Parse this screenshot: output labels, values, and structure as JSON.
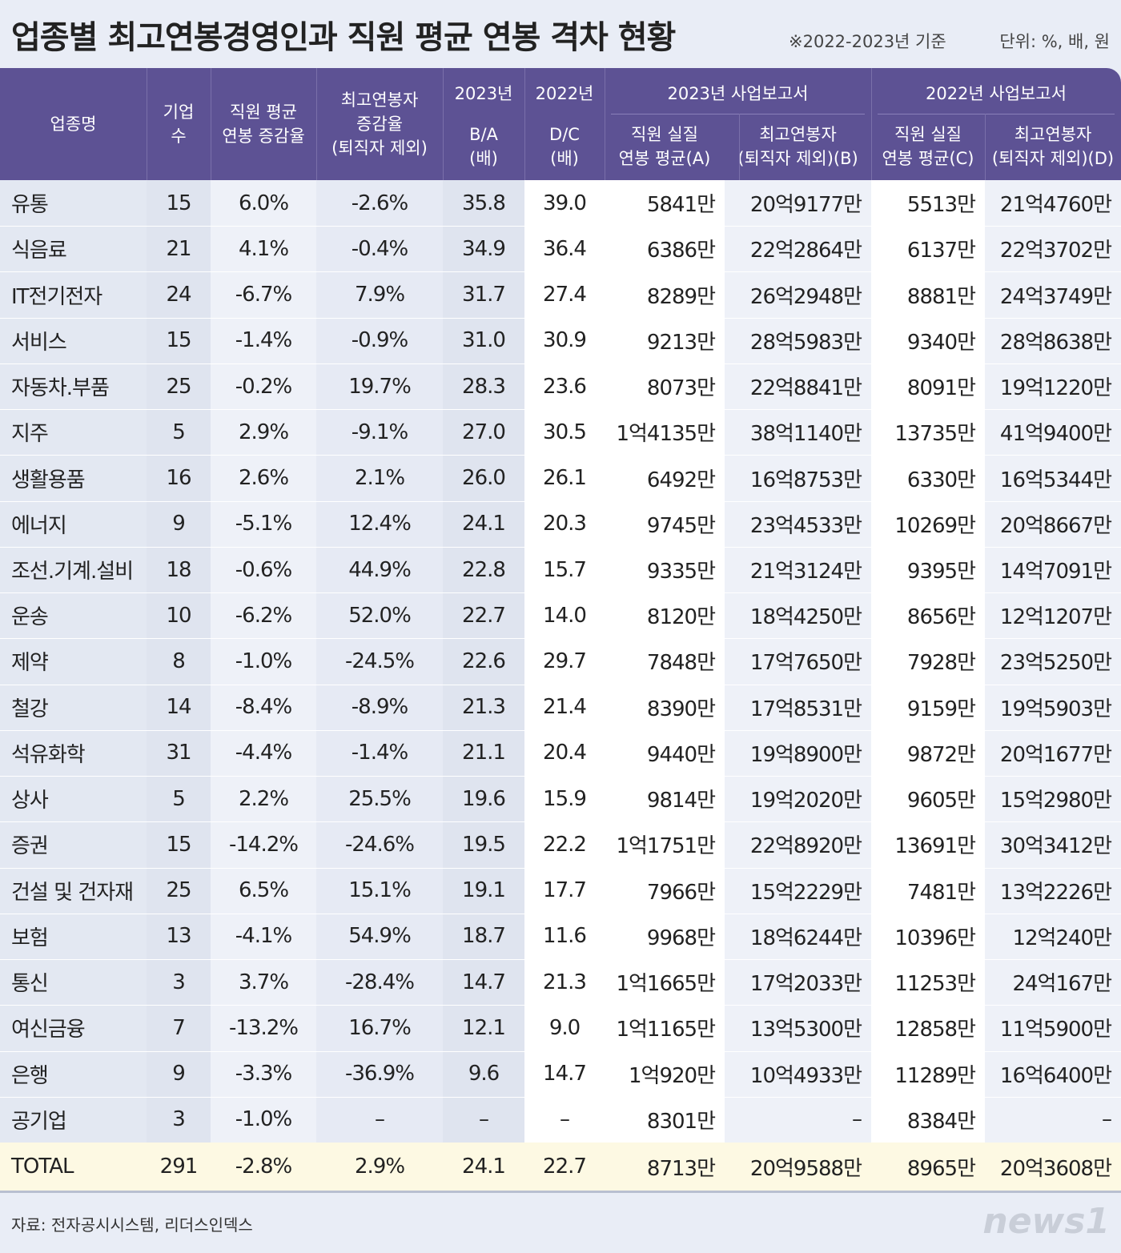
{
  "header": {
    "title": "업종별 최고연봉경영인과 직원 평균 연봉 격차 현황",
    "note": "※2022-2023년 기준",
    "unit": "단위: %, 배, 원"
  },
  "table": {
    "columns": [
      {
        "lines": [
          "업종명"
        ]
      },
      {
        "lines": [
          "기업",
          "수"
        ]
      },
      {
        "lines": [
          "직원 평균",
          "연봉 증감율"
        ]
      },
      {
        "lines": [
          "최고연봉자",
          "증감율",
          "(퇴직자 제외)"
        ]
      },
      {
        "top": "2023년",
        "lines": [
          "B/A",
          "(배)"
        ]
      },
      {
        "top": "2022년",
        "lines": [
          "D/C",
          "(배)"
        ]
      },
      {
        "lines": [
          "직원 실질",
          "연봉 평균(A)"
        ]
      },
      {
        "lines": [
          "최고연봉자",
          "(퇴직자 제외)(B)"
        ]
      },
      {
        "lines": [
          "직원 실질",
          "연봉 평균(C)"
        ]
      },
      {
        "lines": [
          "최고연봉자",
          "(퇴직자 제외)(D)"
        ]
      }
    ],
    "groups": [
      "2023년 사업보고서",
      "2022년 사업보고서"
    ],
    "rows": [
      [
        "유통",
        "15",
        "6.0%",
        "-2.6%",
        "35.8",
        "39.0",
        "5841만",
        "20억9177만",
        "5513만",
        "21억4760만"
      ],
      [
        "식음료",
        "21",
        "4.1%",
        "-0.4%",
        "34.9",
        "36.4",
        "6386만",
        "22억2864만",
        "6137만",
        "22억3702만"
      ],
      [
        "IT전기전자",
        "24",
        "-6.7%",
        "7.9%",
        "31.7",
        "27.4",
        "8289만",
        "26억2948만",
        "8881만",
        "24억3749만"
      ],
      [
        "서비스",
        "15",
        "-1.4%",
        "-0.9%",
        "31.0",
        "30.9",
        "9213만",
        "28억5983만",
        "9340만",
        "28억8638만"
      ],
      [
        "자동차.부품",
        "25",
        "-0.2%",
        "19.7%",
        "28.3",
        "23.6",
        "8073만",
        "22억8841만",
        "8091만",
        "19억1220만"
      ],
      [
        "지주",
        "5",
        "2.9%",
        "-9.1%",
        "27.0",
        "30.5",
        "1억4135만",
        "38억1140만",
        "13735만",
        "41억9400만"
      ],
      [
        "생활용품",
        "16",
        "2.6%",
        "2.1%",
        "26.0",
        "26.1",
        "6492만",
        "16억8753만",
        "6330만",
        "16억5344만"
      ],
      [
        "에너지",
        "9",
        "-5.1%",
        "12.4%",
        "24.1",
        "20.3",
        "9745만",
        "23억4533만",
        "10269만",
        "20억8667만"
      ],
      [
        "조선.기계.설비",
        "18",
        "-0.6%",
        "44.9%",
        "22.8",
        "15.7",
        "9335만",
        "21억3124만",
        "9395만",
        "14억7091만"
      ],
      [
        "운송",
        "10",
        "-6.2%",
        "52.0%",
        "22.7",
        "14.0",
        "8120만",
        "18억4250만",
        "8656만",
        "12억1207만"
      ],
      [
        "제약",
        "8",
        "-1.0%",
        "-24.5%",
        "22.6",
        "29.7",
        "7848만",
        "17억7650만",
        "7928만",
        "23억5250만"
      ],
      [
        "철강",
        "14",
        "-8.4%",
        "-8.9%",
        "21.3",
        "21.4",
        "8390만",
        "17억8531만",
        "9159만",
        "19억5903만"
      ],
      [
        "석유화학",
        "31",
        "-4.4%",
        "-1.4%",
        "21.1",
        "20.4",
        "9440만",
        "19억8900만",
        "9872만",
        "20억1677만"
      ],
      [
        "상사",
        "5",
        "2.2%",
        "25.5%",
        "19.6",
        "15.9",
        "9814만",
        "19억2020만",
        "9605만",
        "15억2980만"
      ],
      [
        "증권",
        "15",
        "-14.2%",
        "-24.6%",
        "19.5",
        "22.2",
        "1억1751만",
        "22억8920만",
        "13691만",
        "30억3412만"
      ],
      [
        "건설 및 건자재",
        "25",
        "6.5%",
        "15.1%",
        "19.1",
        "17.7",
        "7966만",
        "15억2229만",
        "7481만",
        "13억2226만"
      ],
      [
        "보험",
        "13",
        "-4.1%",
        "54.9%",
        "18.7",
        "11.6",
        "9968만",
        "18억6244만",
        "10396만",
        "12억240만"
      ],
      [
        "통신",
        "3",
        "3.7%",
        "-28.4%",
        "14.7",
        "21.3",
        "1억1665만",
        "17억2033만",
        "11253만",
        "24억167만"
      ],
      [
        "여신금융",
        "7",
        "-13.2%",
        "16.7%",
        "12.1",
        "9.0",
        "1억1165만",
        "13억5300만",
        "12858만",
        "11억5900만"
      ],
      [
        "은행",
        "9",
        "-3.3%",
        "-36.9%",
        "9.6",
        "14.7",
        "1억920만",
        "10억4933만",
        "11289만",
        "16억6400만"
      ],
      [
        "공기업",
        "3",
        "-1.0%",
        "–",
        "–",
        "–",
        "8301만",
        "–",
        "8384만",
        "–"
      ]
    ],
    "total": [
      "TOTAL",
      "291",
      "-2.8%",
      "2.9%",
      "24.1",
      "22.7",
      "8713만",
      "20억9588만",
      "8965만",
      "20억3608만"
    ]
  },
  "footer": {
    "source": "자료: 전자공시시스템, 리더스인덱스",
    "logo": "news1"
  }
}
